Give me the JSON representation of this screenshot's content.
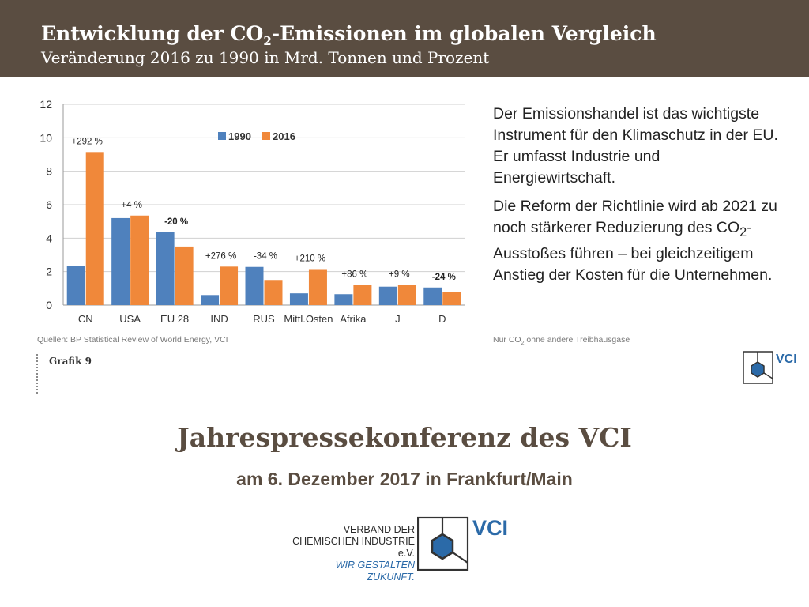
{
  "header": {
    "title_main": "Entwicklung der CO",
    "title_sub": "2",
    "title_rest": "-Emissionen im globalen Vergleich",
    "subtitle": "Veränderung 2016 zu 1990 in Mrd. Tonnen und Prozent"
  },
  "colors": {
    "header_bg": "#5a4d41",
    "series_1990": "#4f81bd",
    "series_2016": "#f0883a",
    "brand_blue": "#2b6aa8"
  },
  "chart_data": {
    "type": "bar",
    "categories": [
      "CN",
      "USA",
      "EU 28",
      "IND",
      "RUS",
      "Mittl.Osten",
      "Afrika",
      "J",
      "D"
    ],
    "series": [
      {
        "name": "1990",
        "color": "#4f81bd",
        "values": [
          2.35,
          5.2,
          4.35,
          0.6,
          2.28,
          0.7,
          0.65,
          1.1,
          1.05
        ]
      },
      {
        "name": "2016",
        "color": "#f0883a",
        "values": [
          9.15,
          5.35,
          3.5,
          2.3,
          1.5,
          2.15,
          1.2,
          1.2,
          0.8
        ]
      }
    ],
    "change_labels": [
      "+292 %",
      "+4 %",
      "-20 %",
      "+276 %",
      "-34 %",
      "+210 %",
      "+86 %",
      "+9 %",
      "-24 %"
    ],
    "change_label_bold": [
      false,
      false,
      true,
      false,
      false,
      false,
      false,
      false,
      true
    ],
    "y_ticks": [
      0,
      2,
      4,
      6,
      8,
      10,
      12
    ],
    "ylim": [
      0,
      12
    ],
    "grid": true,
    "legend": "top-center"
  },
  "side": {
    "para1": "Der Emissionshandel ist das wichtigste Instrument für den Klimaschutz in der EU. Er umfasst Industrie und Energiewirtschaft.",
    "para2_a": "Die Reform der Richtlinie wird ab 2021 zu noch stärkerer Reduzierung des CO",
    "para2_sub": "2",
    "para2_b": "-Ausstoßes führen – bei gleichzeitigem Anstieg der Kosten für die Unternehmen."
  },
  "source": "Quellen: BP Statistical Review of World Energy, VCI",
  "note_a": "Nur CO",
  "note_sub": "2",
  "note_b": " ohne andere Treibhausgase",
  "grafik": "Grafik 9",
  "conference": {
    "title": "Jahrespressekonferenz des VCI",
    "date": "am 6. Dezember 2017 in Frankfurt/Main"
  },
  "org": {
    "line1": "VERBAND DER",
    "line2": "CHEMISCHEN INDUSTRIE e.V.",
    "slogan": "WIR GESTALTEN ZUKUNFT.",
    "logo_text": "VCI"
  }
}
